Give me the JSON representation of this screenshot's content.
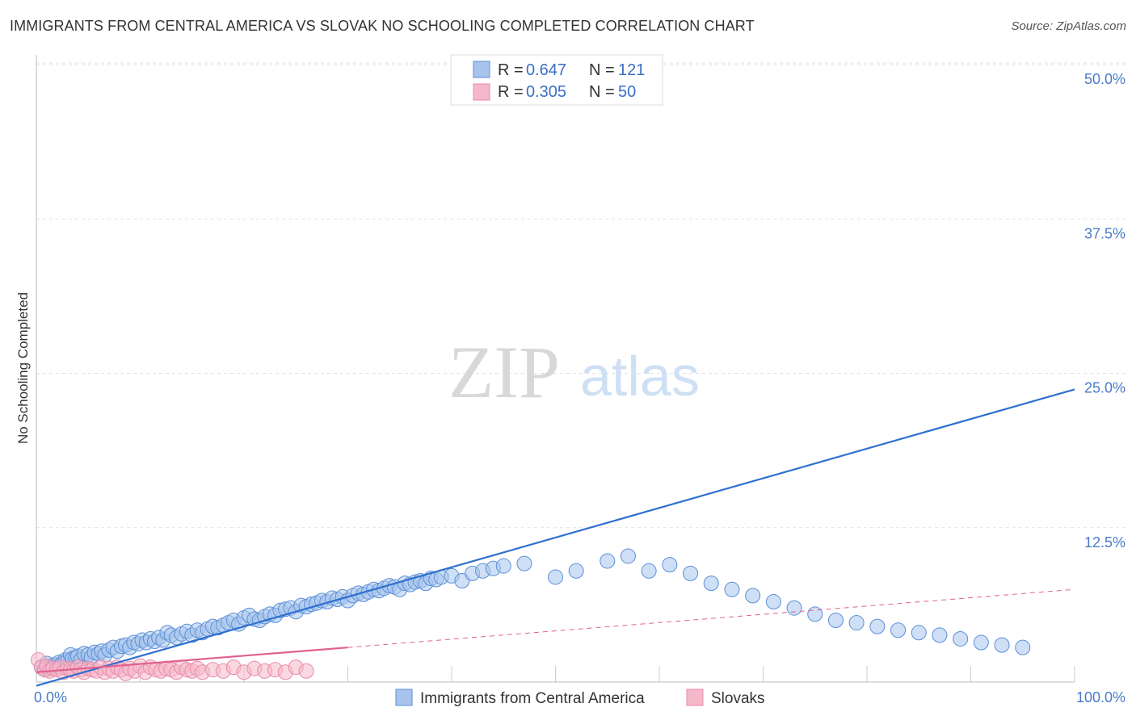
{
  "header": {
    "title": "IMMIGRANTS FROM CENTRAL AMERICA VS SLOVAK NO SCHOOLING COMPLETED CORRELATION CHART",
    "source": "Source: ZipAtlas.com"
  },
  "watermark": {
    "zip": "ZIP",
    "atlas": "atlas"
  },
  "chart_data": {
    "type": "scatter",
    "title": "IMMIGRANTS FROM CENTRAL AMERICA VS SLOVAK NO SCHOOLING COMPLETED CORRELATION CHART",
    "xlabel": "",
    "ylabel": "No Schooling Completed",
    "xlim": [
      0,
      100
    ],
    "ylim": [
      0,
      50
    ],
    "x_tick_labels": [
      "0.0%",
      "100.0%"
    ],
    "y_ticks": [
      12.5,
      25.0,
      37.5,
      50.0
    ],
    "y_tick_labels": [
      "12.5%",
      "25.0%",
      "37.5%",
      "50.0%"
    ],
    "grid": true,
    "legend": {
      "position": "top-center",
      "entries": [
        {
          "r_label": "R =",
          "r_value": "0.647",
          "n_label": "N =",
          "n_value": "121"
        },
        {
          "r_label": "R =",
          "r_value": "0.305",
          "n_label": "N =",
          "n_value": "50"
        }
      ]
    },
    "series": [
      {
        "name": "Immigrants from Central America",
        "color": "#a8c4ec",
        "stroke": "#5b8fd6",
        "line_color": "#2e6fce",
        "trend": {
          "x": [
            0,
            100
          ],
          "y": [
            -0.3,
            23.7
          ]
        },
        "points": [
          [
            0.5,
            1.2
          ],
          [
            0.8,
            1.0
          ],
          [
            1.0,
            1.5
          ],
          [
            1.2,
            1.1
          ],
          [
            1.5,
            1.3
          ],
          [
            1.8,
            1.4
          ],
          [
            2.0,
            1.2
          ],
          [
            2.2,
            1.6
          ],
          [
            2.5,
            1.5
          ],
          [
            2.8,
            1.8
          ],
          [
            3.0,
            1.7
          ],
          [
            3.3,
            2.2
          ],
          [
            3.5,
            1.9
          ],
          [
            3.8,
            2.0
          ],
          [
            4.0,
            2.1
          ],
          [
            4.3,
            1.8
          ],
          [
            4.6,
            2.3
          ],
          [
            5.0,
            2.2
          ],
          [
            5.3,
            2.0
          ],
          [
            5.6,
            2.4
          ],
          [
            6.0,
            2.3
          ],
          [
            6.3,
            2.5
          ],
          [
            6.6,
            2.2
          ],
          [
            7.0,
            2.6
          ],
          [
            7.4,
            2.8
          ],
          [
            7.8,
            2.5
          ],
          [
            8.2,
            2.9
          ],
          [
            8.6,
            3.0
          ],
          [
            9.0,
            2.8
          ],
          [
            9.4,
            3.2
          ],
          [
            9.8,
            3.1
          ],
          [
            10.2,
            3.4
          ],
          [
            10.6,
            3.2
          ],
          [
            11.0,
            3.5
          ],
          [
            11.4,
            3.3
          ],
          [
            11.8,
            3.6
          ],
          [
            12.2,
            3.4
          ],
          [
            12.6,
            4.0
          ],
          [
            13.0,
            3.8
          ],
          [
            13.5,
            3.6
          ],
          [
            14.0,
            3.9
          ],
          [
            14.5,
            4.1
          ],
          [
            15.0,
            3.8
          ],
          [
            15.5,
            4.2
          ],
          [
            16.0,
            4.0
          ],
          [
            16.5,
            4.3
          ],
          [
            17.0,
            4.5
          ],
          [
            17.5,
            4.4
          ],
          [
            18.0,
            4.6
          ],
          [
            18.5,
            4.8
          ],
          [
            19.0,
            5.0
          ],
          [
            19.5,
            4.7
          ],
          [
            20.0,
            5.2
          ],
          [
            20.5,
            5.4
          ],
          [
            21.0,
            5.1
          ],
          [
            21.5,
            5.0
          ],
          [
            22.0,
            5.3
          ],
          [
            22.5,
            5.5
          ],
          [
            23.0,
            5.4
          ],
          [
            23.5,
            5.8
          ],
          [
            24.0,
            5.9
          ],
          [
            24.5,
            6.0
          ],
          [
            25.0,
            5.7
          ],
          [
            25.5,
            6.2
          ],
          [
            26.0,
            6.1
          ],
          [
            26.5,
            6.3
          ],
          [
            27.0,
            6.4
          ],
          [
            27.5,
            6.6
          ],
          [
            28.0,
            6.5
          ],
          [
            28.5,
            6.8
          ],
          [
            29.0,
            6.7
          ],
          [
            29.5,
            6.9
          ],
          [
            30.0,
            6.6
          ],
          [
            30.5,
            7.0
          ],
          [
            31.0,
            7.2
          ],
          [
            31.5,
            7.1
          ],
          [
            32.0,
            7.3
          ],
          [
            32.5,
            7.5
          ],
          [
            33.0,
            7.4
          ],
          [
            33.5,
            7.6
          ],
          [
            34.0,
            7.8
          ],
          [
            34.5,
            7.7
          ],
          [
            35.0,
            7.5
          ],
          [
            35.5,
            8.0
          ],
          [
            36.0,
            7.9
          ],
          [
            36.5,
            8.1
          ],
          [
            37.0,
            8.2
          ],
          [
            37.5,
            8.0
          ],
          [
            38.0,
            8.4
          ],
          [
            38.5,
            8.3
          ],
          [
            39.0,
            8.5
          ],
          [
            40.0,
            8.6
          ],
          [
            41.0,
            8.2
          ],
          [
            42.0,
            8.8
          ],
          [
            43.0,
            9.0
          ],
          [
            44.0,
            9.2
          ],
          [
            45.0,
            9.4
          ],
          [
            47.0,
            9.6
          ],
          [
            50.0,
            8.5
          ],
          [
            52.0,
            9.0
          ],
          [
            55.0,
            9.8
          ],
          [
            57.0,
            10.2
          ],
          [
            59.0,
            9.0
          ],
          [
            61.0,
            9.5
          ],
          [
            63.0,
            8.8
          ],
          [
            65.0,
            8.0
          ],
          [
            67.0,
            7.5
          ],
          [
            69.0,
            7.0
          ],
          [
            71.0,
            6.5
          ],
          [
            73.0,
            6.0
          ],
          [
            75.0,
            5.5
          ],
          [
            77.0,
            5.0
          ],
          [
            79.0,
            4.8
          ],
          [
            81.0,
            4.5
          ],
          [
            83.0,
            4.2
          ],
          [
            85.0,
            4.0
          ],
          [
            87.0,
            3.8
          ],
          [
            89.0,
            3.5
          ],
          [
            91.0,
            3.2
          ],
          [
            93.0,
            3.0
          ],
          [
            95.0,
            2.8
          ]
        ]
      },
      {
        "name": "Slovaks",
        "color": "#f5b8cb",
        "stroke": "#e88aa8",
        "line_color": "#e06090",
        "trend": {
          "x": [
            0,
            30
          ],
          "y": [
            0.8,
            2.8
          ]
        },
        "trend_dashed": {
          "x": [
            30,
            100
          ],
          "y": [
            2.8,
            7.5
          ]
        },
        "points": [
          [
            0.2,
            1.8
          ],
          [
            0.5,
            1.2
          ],
          [
            0.8,
            1.0
          ],
          [
            1.0,
            1.3
          ],
          [
            1.3,
            0.9
          ],
          [
            1.6,
            1.1
          ],
          [
            2.0,
            1.0
          ],
          [
            2.3,
            1.2
          ],
          [
            2.6,
            0.8
          ],
          [
            3.0,
            1.1
          ],
          [
            3.3,
            1.0
          ],
          [
            3.6,
            0.9
          ],
          [
            4.0,
            1.2
          ],
          [
            4.3,
            1.0
          ],
          [
            4.6,
            0.8
          ],
          [
            5.0,
            1.1
          ],
          [
            5.4,
            1.0
          ],
          [
            5.8,
            0.9
          ],
          [
            6.2,
            1.2
          ],
          [
            6.6,
            0.8
          ],
          [
            7.0,
            1.1
          ],
          [
            7.4,
            0.9
          ],
          [
            7.8,
            1.2
          ],
          [
            8.2,
            1.0
          ],
          [
            8.6,
            0.7
          ],
          [
            9.0,
            1.1
          ],
          [
            9.5,
            0.9
          ],
          [
            10.0,
            1.3
          ],
          [
            10.5,
            0.8
          ],
          [
            11.0,
            1.2
          ],
          [
            11.5,
            1.0
          ],
          [
            12.0,
            0.9
          ],
          [
            12.5,
            1.1
          ],
          [
            13.0,
            1.0
          ],
          [
            13.5,
            0.8
          ],
          [
            14.0,
            1.2
          ],
          [
            14.5,
            1.0
          ],
          [
            15.0,
            0.9
          ],
          [
            15.5,
            1.1
          ],
          [
            16.0,
            0.8
          ],
          [
            17.0,
            1.0
          ],
          [
            18.0,
            0.9
          ],
          [
            19.0,
            1.2
          ],
          [
            20.0,
            0.8
          ],
          [
            21.0,
            1.1
          ],
          [
            22.0,
            0.9
          ],
          [
            23.0,
            1.0
          ],
          [
            24.0,
            0.8
          ],
          [
            25.0,
            1.2
          ],
          [
            26.0,
            0.9
          ]
        ]
      }
    ]
  },
  "bottom_legend": [
    {
      "label": "Immigrants from Central America"
    },
    {
      "label": "Slovaks"
    }
  ]
}
